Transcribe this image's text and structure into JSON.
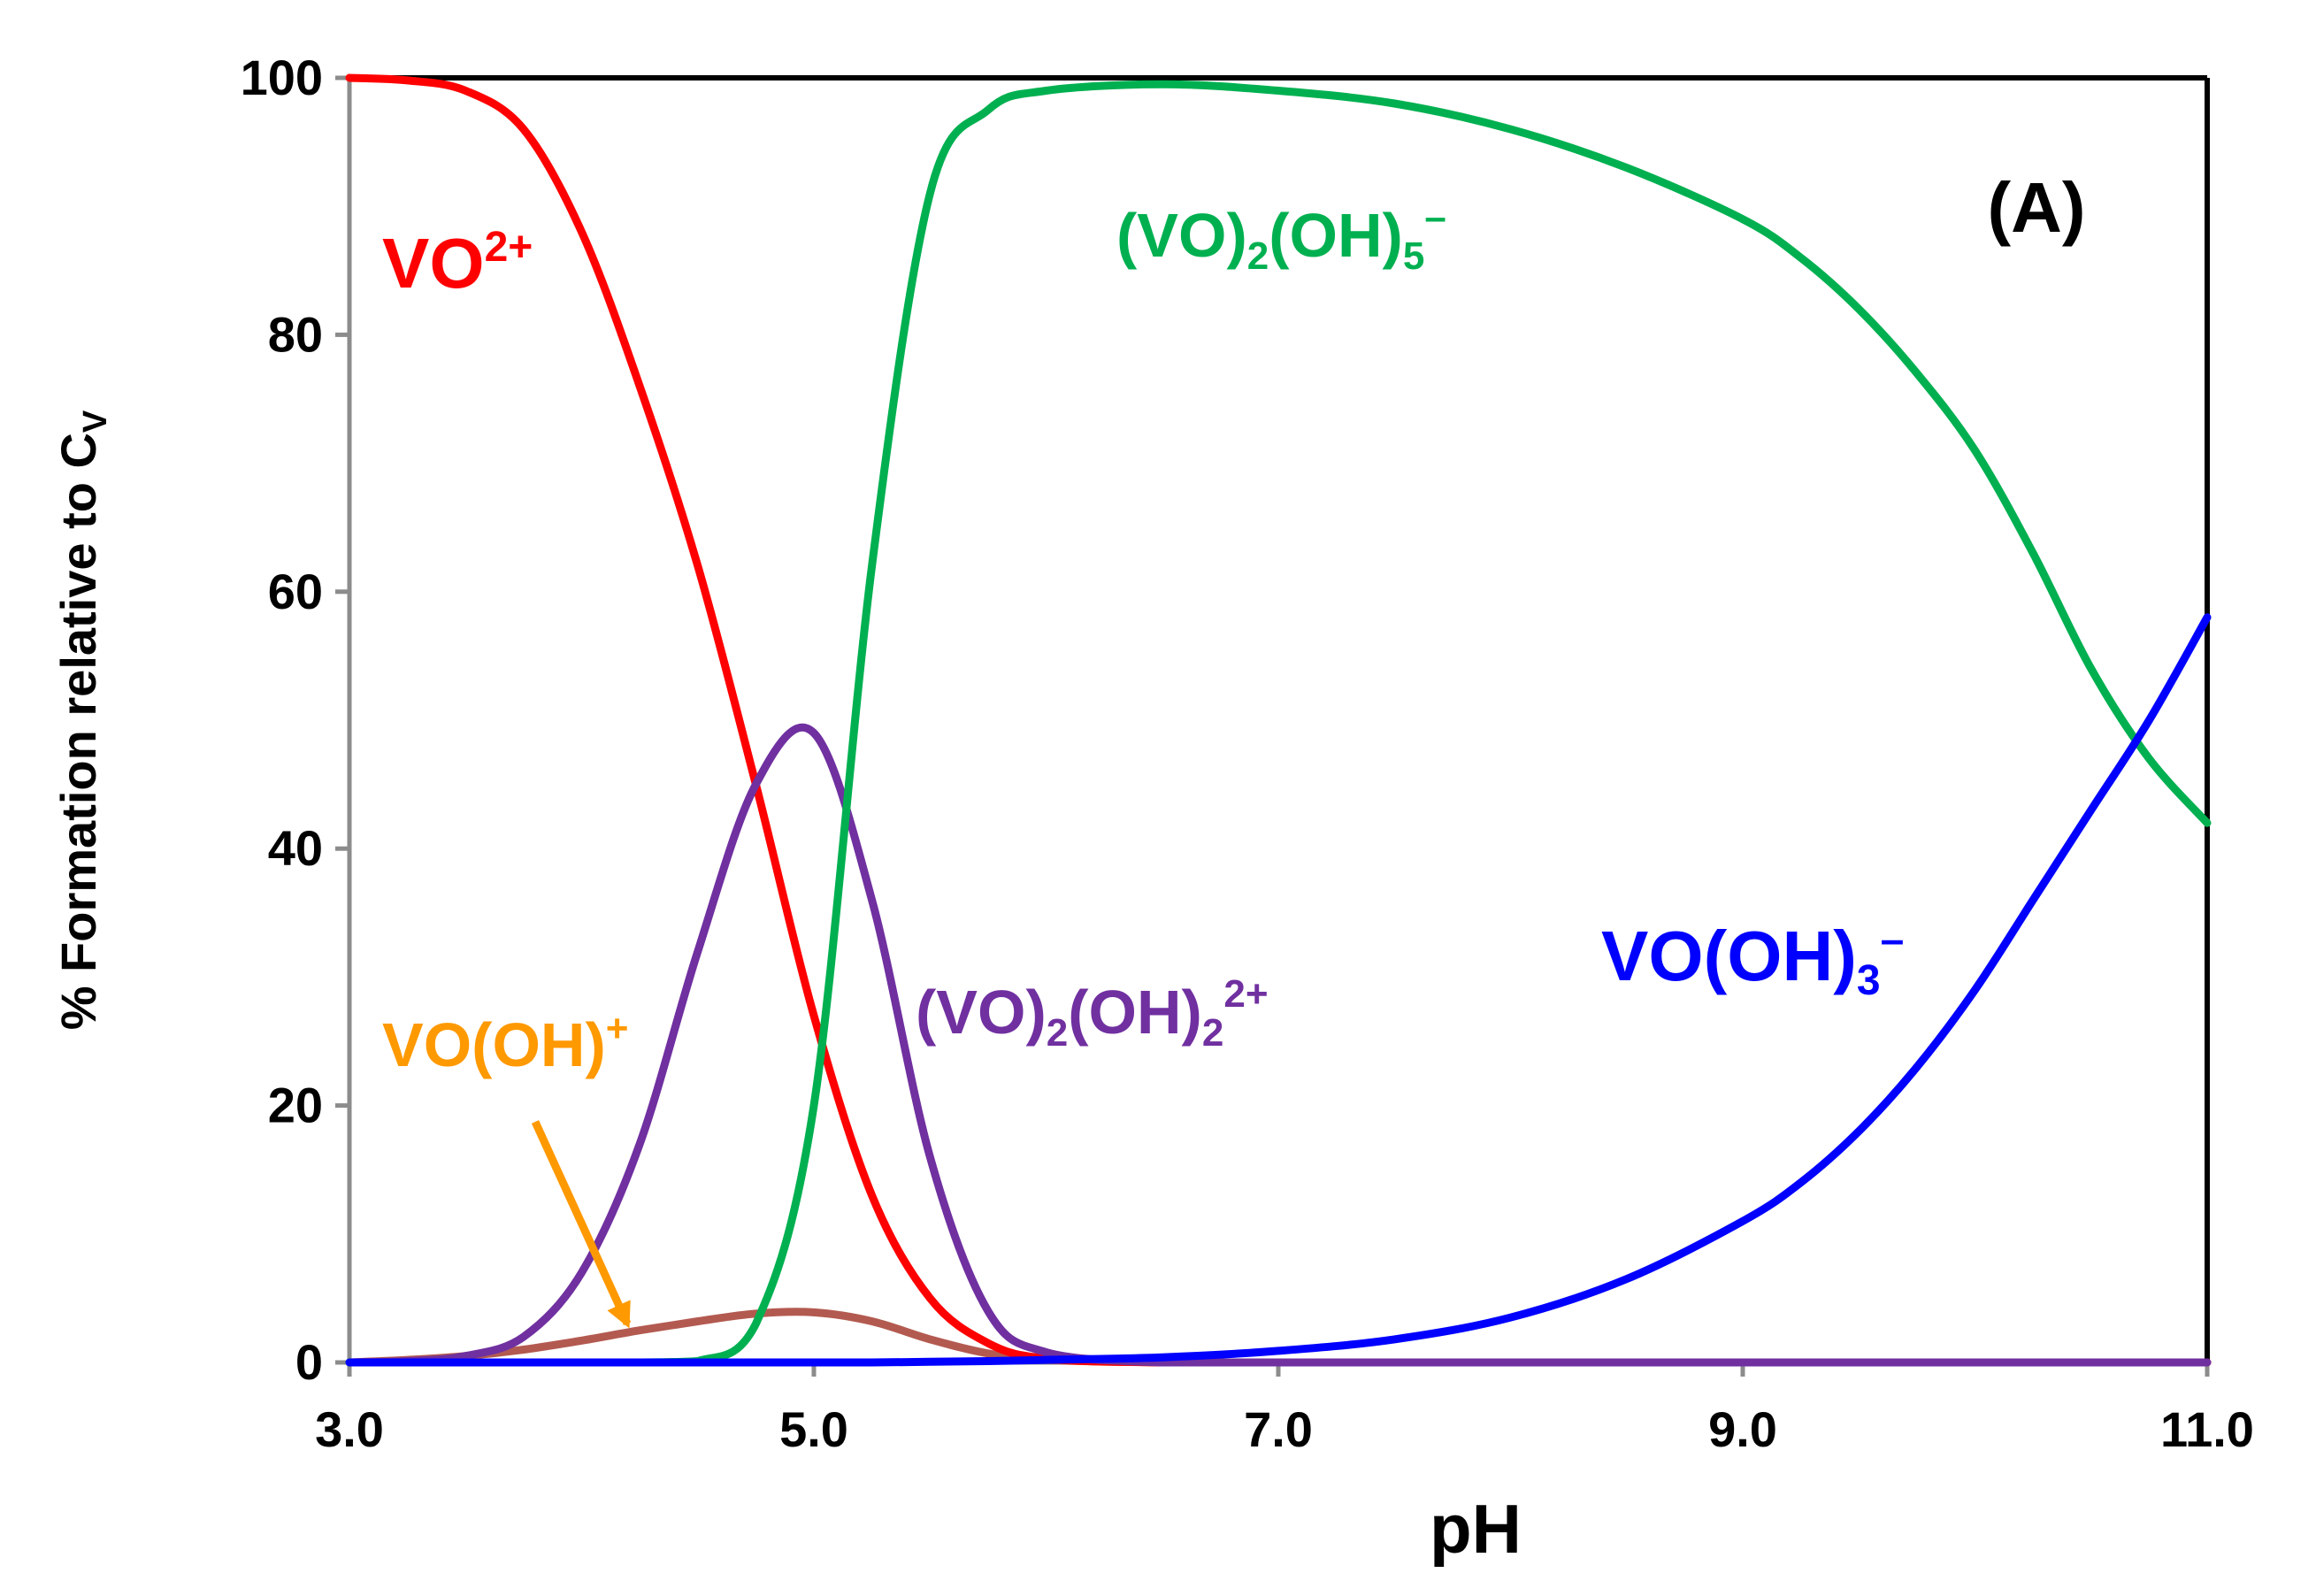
{
  "chart_data": {
    "type": "line",
    "panel_label": "(A)",
    "xlabel": "pH",
    "ylabel": "% Formation relative to C",
    "ylabel_subscript": "V",
    "xlim": [
      3.0,
      11.0
    ],
    "ylim": [
      0,
      100
    ],
    "xticks": [
      "3.0",
      "5.0",
      "7.0",
      "9.0",
      "11.0"
    ],
    "yticks": [
      "0",
      "20",
      "40",
      "60",
      "80",
      "100"
    ],
    "x": [
      3.0,
      3.25,
      3.5,
      3.75,
      4.0,
      4.25,
      4.5,
      4.75,
      5.0,
      5.25,
      5.5,
      5.75,
      6.0,
      6.5,
      7.0,
      7.5,
      8.0,
      8.5,
      9.0,
      9.25,
      9.5,
      9.75,
      10.0,
      10.25,
      10.5,
      10.75,
      11.0
    ],
    "series": [
      {
        "name": "VO2+",
        "label_main": "VO",
        "label_sup": "2+",
        "color": "#ff0000",
        "values": [
          100,
          99.8,
          99,
          96,
          88,
          76,
          62,
          45,
          27,
          13,
          5,
          1.5,
          0.3,
          0,
          0,
          0,
          0,
          0,
          0,
          0,
          0,
          0,
          0,
          0,
          0,
          0,
          0
        ]
      },
      {
        "name": "VO(OH)+",
        "label_main": "VO(OH)",
        "label_sup": "+",
        "color": "#b35a50",
        "values": [
          0,
          0.2,
          0.5,
          1.0,
          1.7,
          2.5,
          3.2,
          3.8,
          3.9,
          3.2,
          1.8,
          0.7,
          0.2,
          0,
          0,
          0,
          0,
          0,
          0,
          0,
          0,
          0,
          0,
          0,
          0,
          0,
          0
        ]
      },
      {
        "name": "(VO)2(OH)2 2+",
        "label_main": "(VO)",
        "label_sub1": "2",
        "label_mid": "(OH)",
        "label_sub2": "2",
        "label_sup": "2+",
        "color": "#7030a0",
        "values": [
          0,
          0.1,
          0.5,
          2,
          7,
          17,
          32,
          45,
          49,
          36,
          16,
          4,
          0.8,
          0,
          0,
          0,
          0,
          0,
          0,
          0,
          0,
          0,
          0,
          0,
          0,
          0,
          0
        ]
      },
      {
        "name": "(VO)2(OH)5 -",
        "label_main": "(VO)",
        "label_sub1": "2",
        "label_mid": "(OH)",
        "label_sub2": "5",
        "label_sup": "–",
        "color": "#00b050",
        "values": [
          0,
          0,
          0,
          0,
          0,
          0,
          0.1,
          3,
          20,
          62,
          91,
          97.5,
          99,
          99.5,
          99,
          98,
          96,
          93,
          89,
          86,
          82,
          77,
          71,
          63,
          54,
          47,
          42
        ]
      },
      {
        "name": "VO(OH)3 -",
        "label_main": "VO(OH)",
        "label_sub1": "3",
        "label_sup": "–",
        "color": "#0000ff",
        "values": [
          0,
          0,
          0,
          0,
          0,
          0,
          0,
          0,
          0,
          0,
          0.05,
          0.1,
          0.2,
          0.4,
          0.9,
          1.8,
          3.5,
          6.5,
          11,
          14,
          18,
          23,
          29,
          36,
          43,
          50,
          58
        ]
      }
    ],
    "annotation": {
      "text": "VO(OH)+",
      "points_to_x": 4.25,
      "points_to_y": 1.5,
      "color": "#ff9900"
    }
  }
}
